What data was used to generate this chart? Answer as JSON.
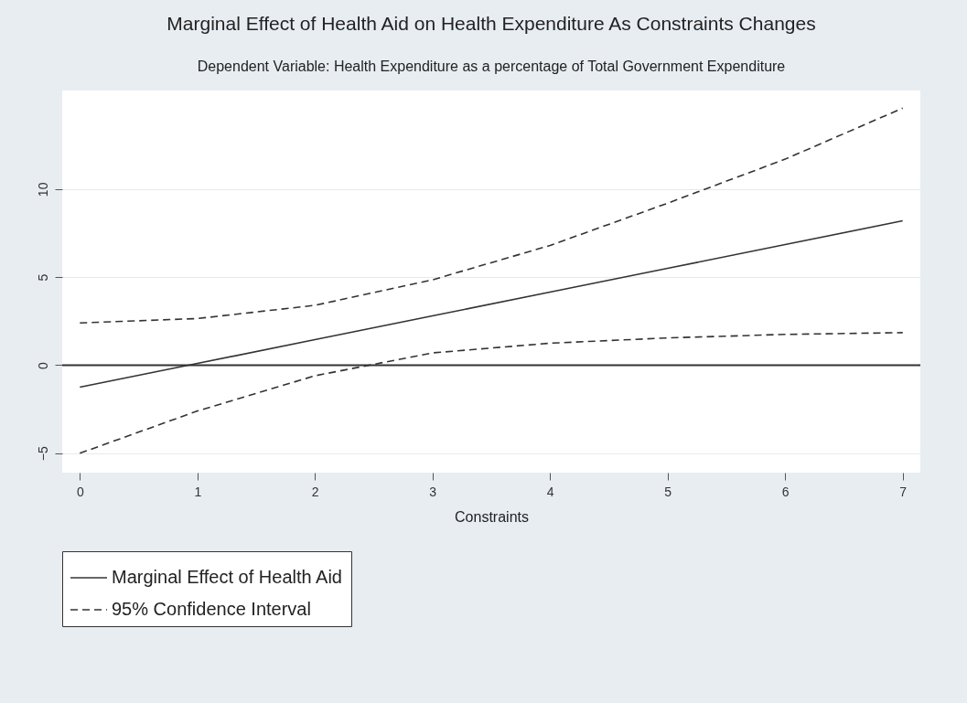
{
  "chart_data": {
    "type": "line",
    "title": "Marginal Effect of Health Aid on Health Expenditure As Constraints Changes",
    "subtitle": "Dependent Variable: Health Expenditure as a percentage of Total Government Expenditure",
    "xlabel": "Constraints",
    "x": [
      0,
      1,
      2,
      3,
      4,
      5,
      6,
      7
    ],
    "series": [
      {
        "name": "Marginal Effect of Health Aid",
        "color": "#333333",
        "line_style": "solid",
        "values": [
          -1.25,
          0.1,
          1.45,
          2.8,
          4.15,
          5.5,
          6.85,
          8.2
        ]
      },
      {
        "name": "95% Confidence Interval",
        "color": "#333333",
        "line_style": "dashed",
        "values": [
          2.4,
          2.65,
          3.4,
          4.85,
          6.8,
          9.2,
          11.7,
          14.6
        ]
      },
      {
        "color": "#333333",
        "line_style": "dashed",
        "values": [
          -5.0,
          -2.6,
          -0.6,
          0.7,
          1.25,
          1.55,
          1.75,
          1.85
        ]
      }
    ],
    "xlim": [
      -0.15,
      7.15
    ],
    "ylim": [
      -6.1,
      15.6
    ],
    "xticks": [
      0,
      1,
      2,
      3,
      4,
      5,
      6,
      7
    ],
    "yticks": [
      -5,
      0,
      5,
      10
    ],
    "ref_lines": [
      {
        "axis": "y",
        "value": 0,
        "color": "#333333"
      }
    ],
    "grid": "y",
    "legend": "bottom",
    "marker": "none"
  }
}
